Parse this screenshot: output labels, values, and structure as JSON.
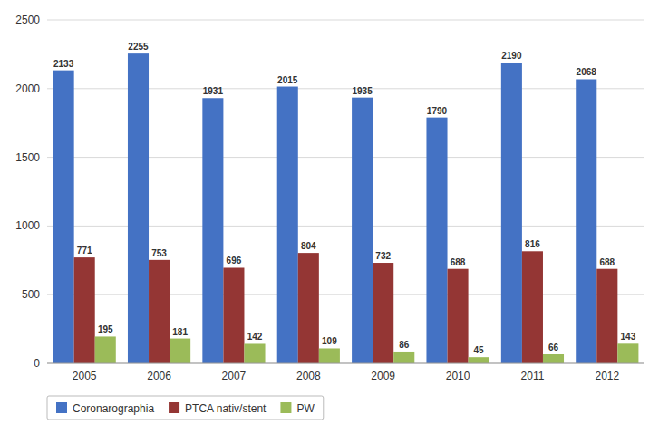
{
  "chart_data": {
    "type": "bar",
    "categories": [
      "2005",
      "2006",
      "2007",
      "2008",
      "2009",
      "2010",
      "2011",
      "2012"
    ],
    "series": [
      {
        "name": "Coronarographia",
        "color": "#4472C4",
        "values": [
          2133,
          2255,
          1931,
          2015,
          1935,
          1790,
          2190,
          2068
        ]
      },
      {
        "name": "PTCA nativ/stent",
        "color": "#943634",
        "values": [
          771,
          753,
          696,
          804,
          732,
          688,
          816,
          688
        ]
      },
      {
        "name": "PW",
        "color": "#9BBB59",
        "values": [
          195,
          181,
          142,
          109,
          86,
          45,
          66,
          143
        ]
      }
    ],
    "ylim": [
      0,
      2500
    ],
    "yticks": [
      0,
      500,
      1000,
      1500,
      2000,
      2500
    ],
    "grid": true,
    "legend": "bottom",
    "data_labels": true
  }
}
